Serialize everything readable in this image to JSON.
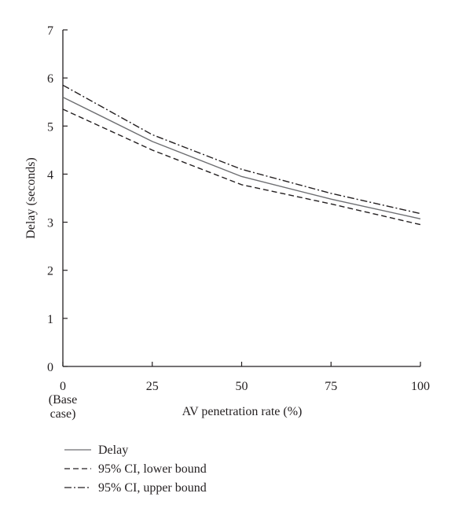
{
  "chart_data": {
    "type": "line",
    "title": "",
    "xlabel": "AV penetration rate (%)",
    "ylabel": "Delay (seconds)",
    "x": [
      0,
      25,
      50,
      75,
      100
    ],
    "x_tick_labels": [
      "0",
      "25",
      "50",
      "75",
      "100"
    ],
    "x_tick_sublabel": [
      "(Base",
      "case)"
    ],
    "y_ticks": [
      0,
      1,
      2,
      3,
      4,
      5,
      6,
      7
    ],
    "xlim": [
      0,
      100
    ],
    "ylim": [
      0,
      7
    ],
    "grid": false,
    "legend_position": "bottom-left",
    "series": [
      {
        "name": "Delay",
        "style": "solid",
        "color": "#6d6e71",
        "values": [
          5.6,
          4.68,
          3.95,
          3.48,
          3.07
        ]
      },
      {
        "name": "95% CI, lower bound",
        "style": "dashed",
        "color": "#231f20",
        "values": [
          5.35,
          4.5,
          3.78,
          3.38,
          2.95
        ]
      },
      {
        "name": "95% CI, upper bound",
        "style": "dashdot",
        "color": "#231f20",
        "values": [
          5.85,
          4.82,
          4.1,
          3.6,
          3.18
        ]
      }
    ]
  }
}
